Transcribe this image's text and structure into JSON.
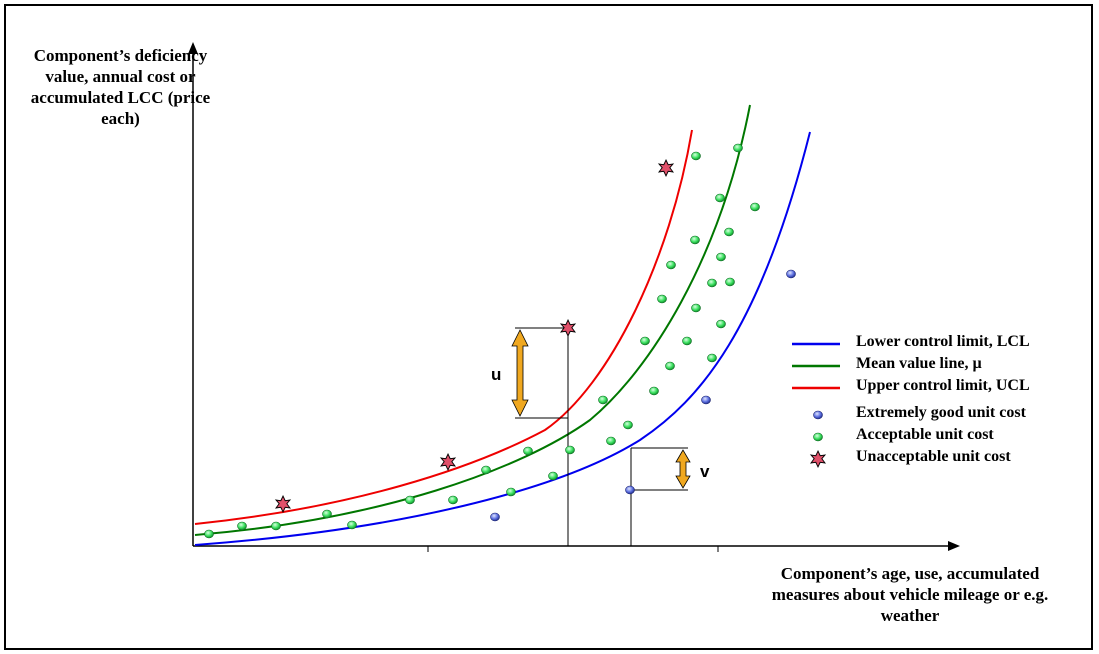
{
  "y_axis_title": "Component’s deficiency value, annual cost or accumulated LCC (price each)",
  "x_axis_title": "Component’s age, use, accumulated measures about vehicle mileage or e.g. weather",
  "legend": [
    {
      "label": "Lower control limit, LCL",
      "type": "line",
      "color": "#0000ee"
    },
    {
      "label": "Mean value line, µ",
      "type": "line",
      "color": "#007700"
    },
    {
      "label": "Upper control limit, UCL",
      "type": "line",
      "color": "#ee0000"
    },
    {
      "label": "Extremely good unit cost",
      "type": "point",
      "color": "#5b6ee0"
    },
    {
      "label": "Acceptable unit cost",
      "type": "point",
      "color": "#2ee05a"
    },
    {
      "label": "Unacceptable unit cost",
      "type": "star",
      "color": "#e0506a"
    }
  ],
  "annotations": {
    "u": "u",
    "v": "v"
  },
  "colors": {
    "lcl": "#0000ee",
    "mean": "#007700",
    "ucl": "#ee0000",
    "good_point": "#5b6ee0",
    "acceptable_point": "#2ee05a",
    "unacceptable_point": "#e0506a",
    "arrow": "#f0a820"
  }
}
